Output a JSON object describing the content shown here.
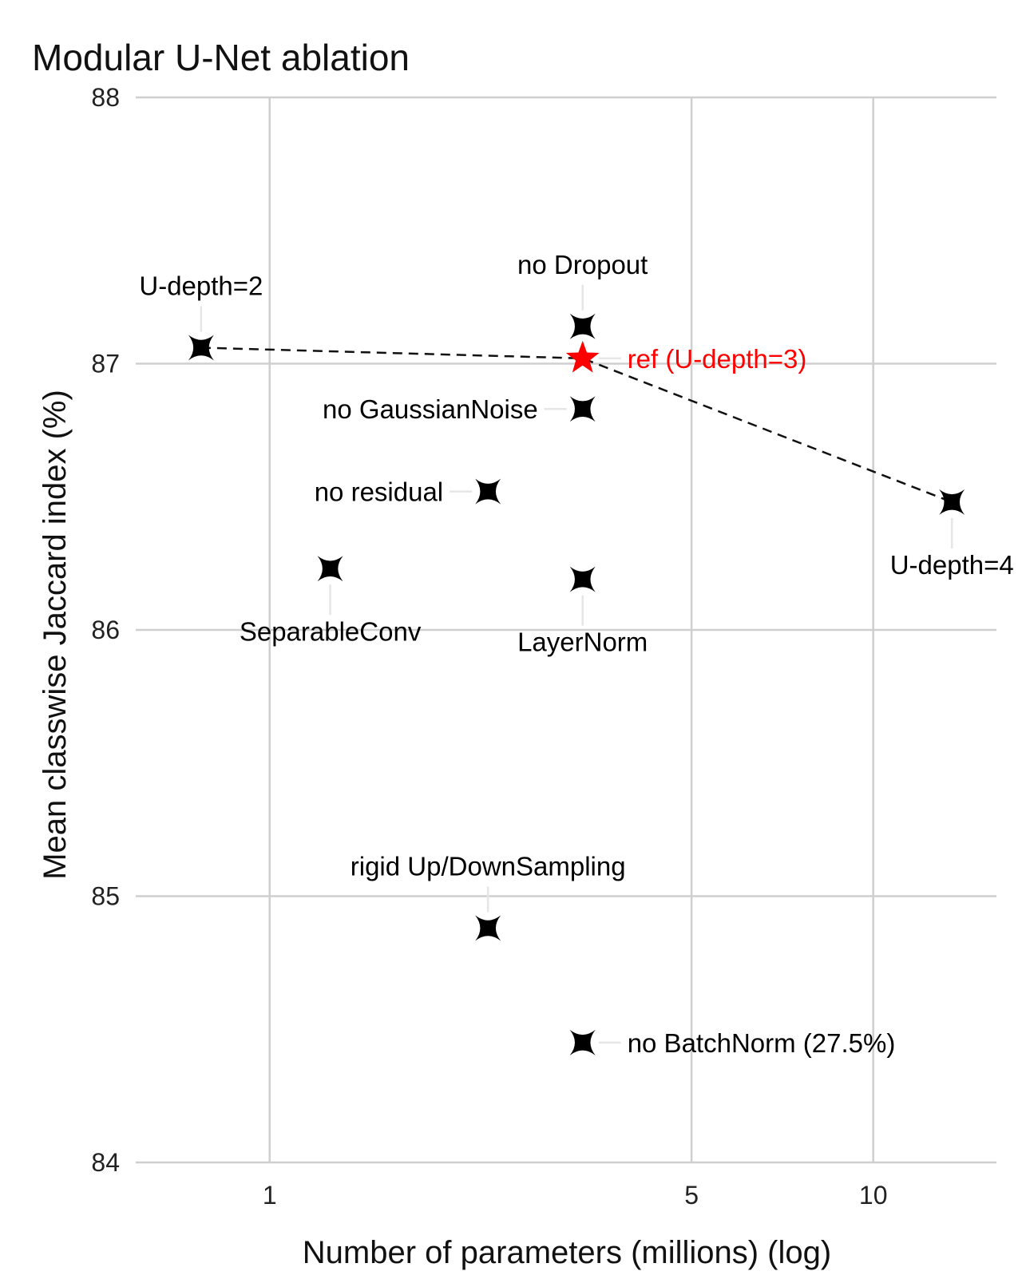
{
  "chart_data": {
    "type": "scatter",
    "title": "Modular U-Net ablation",
    "xlabel": "Number of parameters (millions) (log)",
    "ylabel": "Mean classwise Jaccard index (%)",
    "xscale": "log",
    "xlim": [
      0.6,
      16
    ],
    "ylim": [
      84,
      88
    ],
    "xticks": [
      1,
      5,
      10
    ],
    "yticks": [
      84,
      85,
      86,
      87,
      88
    ],
    "grid": true,
    "colors": {
      "default": "#000000",
      "reference": "#ff0000",
      "grid": "#cfcfcf"
    },
    "points": [
      {
        "label": "U-depth=2",
        "x": 0.77,
        "y": 87.06,
        "marker": "x",
        "highlight": false
      },
      {
        "label": "no Dropout",
        "x": 3.3,
        "y": 87.14,
        "marker": "x",
        "highlight": false
      },
      {
        "label": "ref (U-depth=3)",
        "x": 3.3,
        "y": 87.02,
        "marker": "star",
        "highlight": true
      },
      {
        "label": "no GaussianNoise",
        "x": 3.3,
        "y": 86.83,
        "marker": "x",
        "highlight": false
      },
      {
        "label": "no residual",
        "x": 2.3,
        "y": 86.52,
        "marker": "x",
        "highlight": false
      },
      {
        "label": "U-depth=4",
        "x": 13.5,
        "y": 86.48,
        "marker": "x",
        "highlight": false
      },
      {
        "label": "SeparableConv",
        "x": 1.26,
        "y": 86.23,
        "marker": "x",
        "highlight": false
      },
      {
        "label": "LayerNorm",
        "x": 3.3,
        "y": 86.19,
        "marker": "x",
        "highlight": false
      },
      {
        "label": "rigid Up/DownSampling",
        "x": 2.3,
        "y": 84.88,
        "marker": "x",
        "highlight": false
      },
      {
        "label": "no BatchNorm (27.5%)",
        "x": 3.3,
        "y": 84.45,
        "marker": "x",
        "highlight": false
      }
    ],
    "depth_line": [
      "U-depth=2",
      "ref (U-depth=3)",
      "U-depth=4"
    ]
  }
}
